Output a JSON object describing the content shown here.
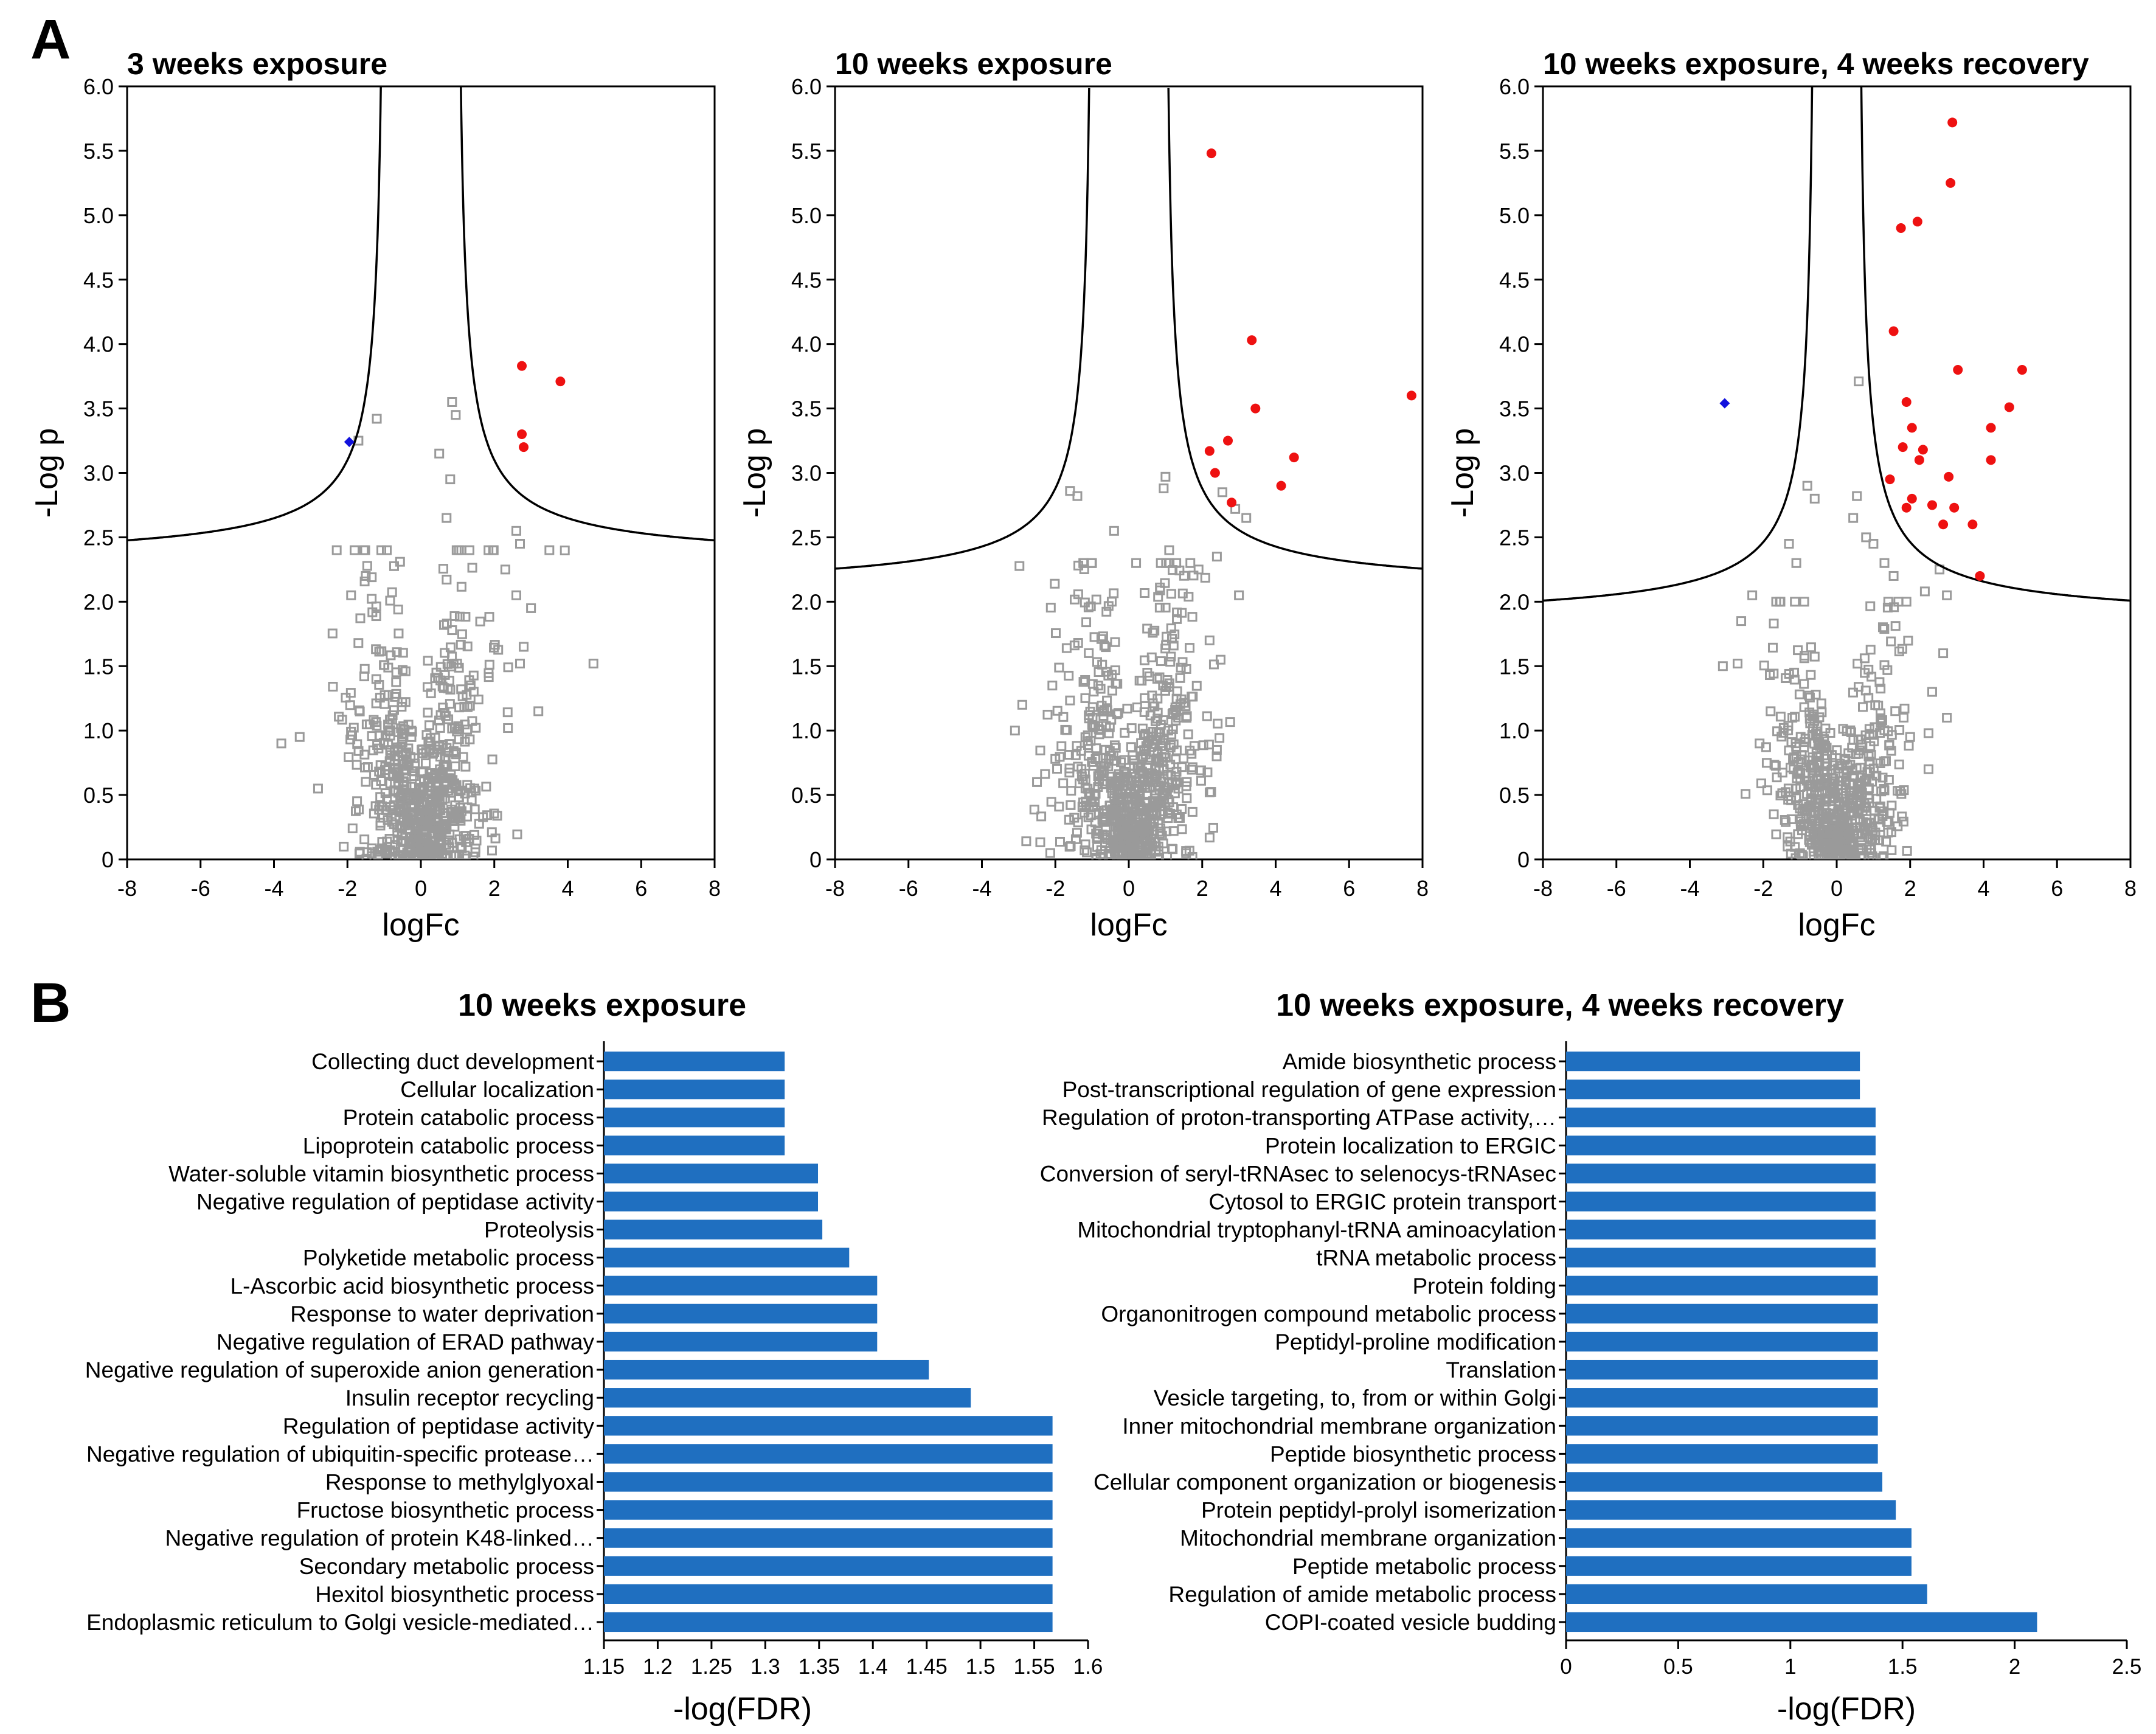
{
  "panel_labels": [
    "A",
    "B"
  ],
  "colors": {
    "bar": "#1f6fc0",
    "sig_up": "#ee1111",
    "sig_down": "#1111dd",
    "nonsig": "#9a9a9a",
    "axis": "#000000"
  },
  "chart_data": [
    {
      "type": "scatter",
      "title": "3 weeks exposure",
      "xlabel": "logFc",
      "ylabel": "-Log p",
      "xlim": [
        -8,
        8
      ],
      "ylim": [
        0,
        6
      ],
      "xticks": [
        "-8",
        "-6",
        "-4",
        "-2",
        "0",
        "2",
        "4",
        "6",
        "8"
      ],
      "yticks": [
        "0",
        "0.5",
        "1.0",
        "1.5",
        "2.0",
        "2.5",
        "3.0",
        "3.5",
        "4.0",
        "4.5",
        "5.0",
        "5.5",
        "6.0"
      ],
      "threshold": {
        "s0": 0.95,
        "c": 2.28
      },
      "cloud": {
        "n": 700,
        "seed": 11,
        "xscale": 0.85,
        "yscale": 0.72,
        "ymax": 2.4
      },
      "nonsig_extra": [
        [
          -1.2,
          3.42
        ],
        [
          -1.7,
          3.25
        ],
        [
          0.85,
          3.55
        ],
        [
          0.95,
          3.45
        ],
        [
          0.5,
          3.15
        ],
        [
          0.8,
          2.95
        ],
        [
          0.7,
          2.65
        ],
        [
          2.6,
          2.55
        ],
        [
          2.7,
          2.45
        ],
        [
          3.5,
          2.4
        ],
        [
          2.3,
          2.25
        ],
        [
          2.6,
          2.05
        ],
        [
          3.0,
          1.95
        ],
        [
          2.8,
          1.65
        ],
        [
          2.7,
          1.52
        ],
        [
          4.7,
          1.52
        ],
        [
          3.2,
          1.15
        ],
        [
          -3.8,
          0.9
        ],
        [
          -3.3,
          0.95
        ],
        [
          -2.8,
          0.55
        ],
        [
          -1.9,
          2.05
        ],
        [
          -1.5,
          2.2
        ]
      ],
      "significant_up": [
        [
          2.75,
          3.83
        ],
        [
          3.8,
          3.71
        ],
        [
          2.75,
          3.3
        ],
        [
          2.8,
          3.2
        ]
      ],
      "significant_down": [
        [
          -1.95,
          3.24
        ]
      ]
    },
    {
      "type": "scatter",
      "title": "10 weeks exposure",
      "xlabel": "logFc",
      "ylabel": "-Log p",
      "xlim": [
        -8,
        8
      ],
      "ylim": [
        0,
        6
      ],
      "xticks": [
        "-8",
        "-6",
        "-4",
        "-2",
        "0",
        "2",
        "4",
        "6",
        "8"
      ],
      "yticks": [
        "0",
        "0.5",
        "1.0",
        "1.5",
        "2.0",
        "2.5",
        "3.0",
        "3.5",
        "4.0",
        "4.5",
        "5.0",
        "5.5",
        "6.0"
      ],
      "threshold": {
        "s0": 0.95,
        "c": 2.06
      },
      "cloud": {
        "n": 750,
        "seed": 23,
        "xscale": 0.95,
        "yscale": 0.7,
        "ymax": 2.3
      },
      "nonsig_extra": [
        [
          1.0,
          2.97
        ],
        [
          0.95,
          2.88
        ],
        [
          2.55,
          2.85
        ],
        [
          2.9,
          2.72
        ],
        [
          3.2,
          2.65
        ],
        [
          -1.6,
          2.86
        ],
        [
          -1.4,
          2.82
        ],
        [
          -0.4,
          2.55
        ],
        [
          1.1,
          2.4
        ],
        [
          0.2,
          2.3
        ],
        [
          2.4,
          2.35
        ],
        [
          1.9,
          2.25
        ],
        [
          3.0,
          2.05
        ],
        [
          2.2,
          1.7
        ],
        [
          2.5,
          1.55
        ],
        [
          -2.9,
          1.2
        ],
        [
          -3.1,
          1.0
        ],
        [
          -2.5,
          0.6
        ],
        [
          2.4,
          0.85
        ]
      ],
      "significant_up": [
        [
          2.25,
          5.48
        ],
        [
          3.35,
          4.03
        ],
        [
          3.45,
          3.5
        ],
        [
          7.7,
          3.6
        ],
        [
          2.7,
          3.25
        ],
        [
          2.2,
          3.17
        ],
        [
          2.35,
          3.0
        ],
        [
          4.5,
          3.12
        ],
        [
          4.15,
          2.9
        ],
        [
          2.8,
          2.77
        ]
      ],
      "significant_down": []
    },
    {
      "type": "scatter",
      "title": "10 weeks exposure, 4 weeks recovery",
      "xlabel": "logFc",
      "ylabel": "-Log p",
      "xlim": [
        -8,
        8
      ],
      "ylim": [
        0,
        6
      ],
      "xticks": [
        "-8",
        "-6",
        "-4",
        "-2",
        "0",
        "2",
        "4",
        "6",
        "8"
      ],
      "yticks": [
        "0",
        "0.5",
        "1.0",
        "1.5",
        "2.0",
        "2.5",
        "3.0",
        "3.5",
        "4.0",
        "4.5",
        "5.0",
        "5.5",
        "6.0"
      ],
      "threshold": {
        "s0": 0.55,
        "c": 1.82
      },
      "cloud": {
        "n": 650,
        "seed": 37,
        "xscale": 0.8,
        "yscale": 0.6,
        "ymax": 2.0
      },
      "nonsig_extra": [
        [
          0.6,
          3.71
        ],
        [
          -0.8,
          2.9
        ],
        [
          -0.6,
          2.8
        ],
        [
          0.55,
          2.82
        ],
        [
          0.45,
          2.65
        ],
        [
          1.0,
          2.45
        ],
        [
          0.8,
          2.5
        ],
        [
          1.3,
          2.3
        ],
        [
          1.55,
          2.2
        ],
        [
          2.8,
          2.25
        ],
        [
          3.0,
          2.05
        ],
        [
          1.9,
          2.0
        ],
        [
          2.4,
          2.08
        ],
        [
          -1.1,
          2.3
        ],
        [
          -1.3,
          2.45
        ],
        [
          -2.3,
          2.05
        ],
        [
          -2.6,
          1.85
        ],
        [
          -3.1,
          1.5
        ],
        [
          -2.7,
          1.52
        ],
        [
          2.9,
          1.6
        ],
        [
          2.6,
          1.3
        ],
        [
          2.5,
          0.98
        ],
        [
          2.0,
          0.95
        ],
        [
          3.0,
          1.1
        ],
        [
          2.5,
          0.7
        ],
        [
          -1.8,
          1.15
        ],
        [
          -2.1,
          0.9
        ]
      ],
      "significant_up": [
        [
          3.15,
          5.72
        ],
        [
          3.1,
          5.25
        ],
        [
          2.2,
          4.95
        ],
        [
          1.75,
          4.9
        ],
        [
          1.55,
          4.1
        ],
        [
          3.3,
          3.8
        ],
        [
          5.05,
          3.8
        ],
        [
          1.9,
          3.55
        ],
        [
          4.7,
          3.51
        ],
        [
          4.2,
          3.35
        ],
        [
          2.05,
          3.35
        ],
        [
          1.8,
          3.2
        ],
        [
          2.35,
          3.18
        ],
        [
          2.25,
          3.1
        ],
        [
          4.2,
          3.1
        ],
        [
          1.45,
          2.95
        ],
        [
          3.05,
          2.97
        ],
        [
          2.05,
          2.8
        ],
        [
          1.9,
          2.73
        ],
        [
          2.6,
          2.75
        ],
        [
          3.2,
          2.73
        ],
        [
          3.7,
          2.6
        ],
        [
          2.9,
          2.6
        ],
        [
          3.9,
          2.2
        ]
      ],
      "significant_down": [
        [
          -3.05,
          3.54
        ]
      ]
    },
    {
      "type": "bar",
      "orientation": "horizontal",
      "title": "10 weeks exposure",
      "xlabel": "-log(FDR)",
      "xlim": [
        1.15,
        1.6
      ],
      "xticks": [
        "1.15",
        "1.2",
        "1.25",
        "1.3",
        "1.35",
        "1.4",
        "1.45",
        "1.5",
        "1.55",
        "1.6"
      ],
      "categories": [
        "Collecting duct development",
        "Cellular localization",
        "Protein catabolic process",
        "Lipoprotein catabolic process",
        "Water-soluble vitamin biosynthetic process",
        "Negative regulation of peptidase activity",
        "Proteolysis",
        "Polyketide metabolic process",
        "L-Ascorbic acid biosynthetic process",
        "Response to water deprivation",
        "Negative regulation of ERAD pathway",
        "Negative regulation of superoxide anion generation",
        "Insulin receptor recycling",
        "Regulation of peptidase activity",
        "Negative regulation of ubiquitin-specific protease…",
        "Response to methylglyoxal",
        "Fructose biosynthetic process",
        "Negative regulation of protein K48-linked…",
        "Secondary metabolic process",
        "Hexitol biosynthetic process",
        "Endoplasmic reticulum to Golgi vesicle-mediated…"
      ],
      "values": [
        1.318,
        1.318,
        1.318,
        1.318,
        1.349,
        1.349,
        1.353,
        1.378,
        1.404,
        1.404,
        1.404,
        1.452,
        1.491,
        1.567,
        1.567,
        1.567,
        1.567,
        1.567,
        1.567,
        1.567,
        1.567
      ]
    },
    {
      "type": "bar",
      "orientation": "horizontal",
      "title": "10 weeks exposure, 4 weeks recovery",
      "xlabel": "-log(FDR)",
      "xlim": [
        0,
        2.5
      ],
      "xticks": [
        "0",
        "0.5",
        "1",
        "1.5",
        "2",
        "2.5"
      ],
      "categories": [
        "Amide biosynthetic process",
        "Post-transcriptional regulation of gene expression",
        "Regulation of proton-transporting ATPase activity,…",
        "Protein localization to ERGIC",
        "Conversion of seryl-tRNAsec to selenocys-tRNAsec",
        "Cytosol to ERGIC protein transport",
        "Mitochondrial tryptophanyl-tRNA aminoacylation",
        "tRNA metabolic process",
        "Protein folding",
        "Organonitrogen compound metabolic process",
        "Peptidyl-proline modification",
        "Translation",
        "Vesicle targeting, to, from or within Golgi",
        "Inner mitochondrial membrane organization",
        "Peptide biosynthetic process",
        "Cellular component organization or biogenesis",
        "Protein peptidyl-prolyl isomerization",
        "Mitochondrial membrane organization",
        "Peptide metabolic process",
        "Regulation of amide metabolic process",
        "COPI-coated vesicle budding"
      ],
      "values": [
        1.31,
        1.31,
        1.38,
        1.38,
        1.38,
        1.38,
        1.38,
        1.38,
        1.39,
        1.39,
        1.39,
        1.39,
        1.39,
        1.39,
        1.39,
        1.41,
        1.47,
        1.54,
        1.54,
        1.61,
        2.1
      ]
    }
  ]
}
